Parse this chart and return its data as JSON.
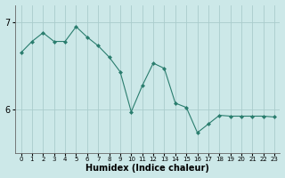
{
  "x": [
    0,
    1,
    2,
    3,
    4,
    5,
    6,
    7,
    8,
    9,
    10,
    11,
    12,
    13,
    14,
    15,
    16,
    17,
    18,
    19,
    20,
    21,
    22,
    23
  ],
  "y": [
    6.65,
    6.78,
    6.88,
    6.78,
    6.78,
    6.95,
    6.83,
    6.73,
    6.6,
    6.43,
    5.97,
    6.27,
    6.53,
    6.47,
    6.07,
    6.02,
    5.73,
    5.83,
    5.93,
    5.92,
    5.92,
    5.92,
    5.92,
    5.91
  ],
  "line_color": "#2a7d6e",
  "marker": "D",
  "marker_size": 2,
  "bg_color": "#cce8e8",
  "grid_color": "#aacccc",
  "axis_label": "Humidex (Indice chaleur)",
  "xlabel_fontsize": 7,
  "ytick_fontsize": 7,
  "xtick_fontsize": 5,
  "yticks": [
    6,
    7
  ],
  "xlim": [
    -0.5,
    23.5
  ],
  "ylim": [
    5.5,
    7.2
  ],
  "xtick_labels": [
    "0",
    "1",
    "2",
    "3",
    "4",
    "5",
    "6",
    "7",
    "8",
    "9",
    "10",
    "11",
    "12",
    "13",
    "14",
    "15",
    "16",
    "17",
    "18",
    "19",
    "20",
    "21",
    "22",
    "23"
  ]
}
